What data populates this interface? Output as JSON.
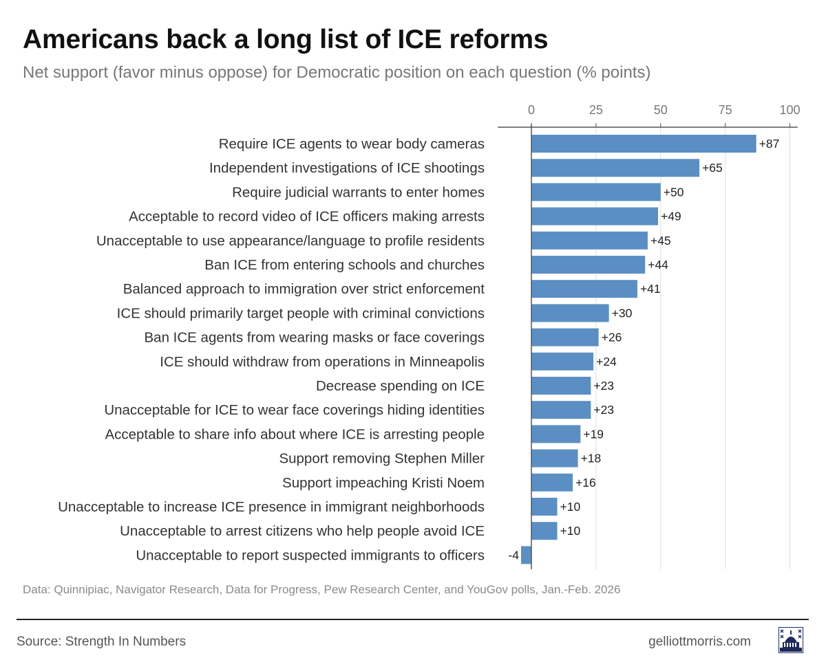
{
  "title": "Americans back a long list of ICE reforms",
  "subtitle": "Net support (favor minus oppose) for Democratic position on each question (% points)",
  "note": "Data: Quinnipiac, Navigator Research, Data for Progress, Pew Research Center, and YouGov polls, Jan.-Feb. 2026",
  "footer": {
    "source": "Source: Strength In Numbers",
    "site": "gelliottmorris.com",
    "logo_icon": "capitol-dome-icon"
  },
  "colors": {
    "bar": "#5b8fc3",
    "grid": "#dddddd",
    "axis": "#555555"
  },
  "chart_data": {
    "type": "bar",
    "orientation": "horizontal",
    "title": "Americans back a long list of ICE reforms",
    "subtitle": "Net support (favor minus oppose) for Democratic position on each question (% points)",
    "xlim": [
      -13,
      103
    ],
    "xticks": [
      0,
      25,
      50,
      75,
      100
    ],
    "grid": true,
    "categories": [
      "Require ICE agents to wear body cameras",
      "Independent investigations of ICE shootings",
      "Require judicial warrants to enter homes",
      "Acceptable to record video of ICE officers making arrests",
      "Unacceptable to use appearance/language to profile residents",
      "Ban ICE from entering schools and churches",
      "Balanced approach to immigration over strict enforcement",
      "ICE should primarily target people with criminal convictions",
      "Ban ICE agents from wearing masks or face coverings",
      "ICE should withdraw from operations in Minneapolis",
      "Decrease spending on ICE",
      "Unacceptable for ICE to wear face coverings hiding identities",
      "Acceptable to share info about where ICE is arresting people",
      "Support removing Stephen Miller",
      "Support impeaching Kristi Noem",
      "Unacceptable to increase ICE presence in immigrant neighborhoods",
      "Unacceptable to arrest citizens who help people avoid ICE",
      "Unacceptable to report suspected immigrants to officers"
    ],
    "values": [
      87,
      65,
      50,
      49,
      45,
      44,
      41,
      30,
      26,
      24,
      23,
      23,
      19,
      18,
      16,
      10,
      10,
      -4
    ],
    "value_labels": [
      "+87",
      "+65",
      "+50",
      "+49",
      "+45",
      "+44",
      "+41",
      "+30",
      "+26",
      "+24",
      "+23",
      "+23",
      "+19",
      "+18",
      "+16",
      "+10",
      "+10",
      "-4"
    ]
  }
}
